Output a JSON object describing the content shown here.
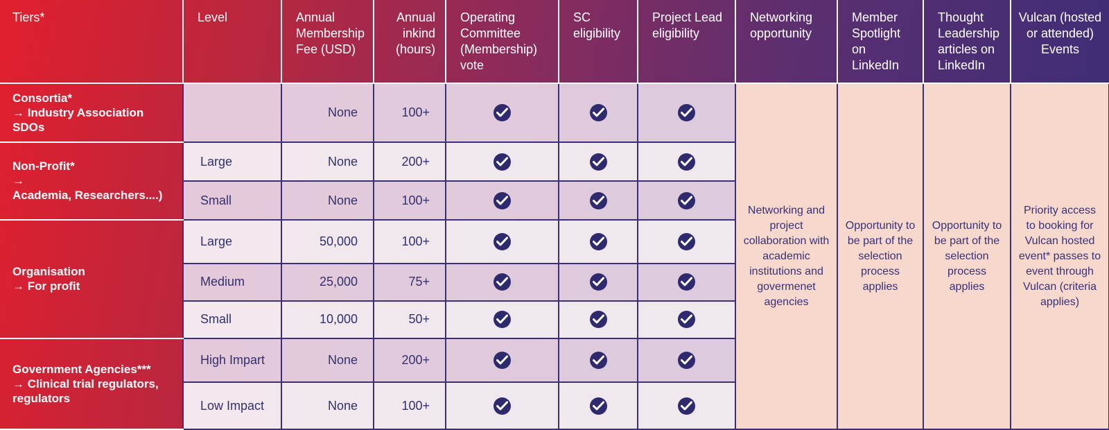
{
  "headers": {
    "tiers": "Tiers*",
    "level": "Level",
    "fee": "Annual Membership Fee (USD)",
    "inkind": "Annual inkind (hours)",
    "oc_vote": "Operating Committee (Membership) vote",
    "sc": "SC eligibility",
    "project_lead": "Project Lead eligibility",
    "networking": "Networking opportunity",
    "spotlight": "Member Spotlight on LinkedIn",
    "thought": "Thought Leadership articles on LinkedIn",
    "events": "Vulcan (hosted or attended) Events"
  },
  "tiers": {
    "consortia": {
      "title": "Consortia*",
      "arrow": "→",
      "sub1": "Industry Association",
      "sub2": "SDOs"
    },
    "nonprofit": {
      "title": "Non-Profit*",
      "arrow": "→",
      "sub1": "Academia, Researchers....)"
    },
    "organisation": {
      "title": "Organisation",
      "arrow": "→",
      "sub1": "For profit"
    },
    "government": {
      "title": "Government Agencies***",
      "arrow": "→",
      "sub1": "Clinical trial regulators,",
      "sub2": "regulators"
    }
  },
  "rows": [
    {
      "level": "",
      "fee": "None",
      "inkind": "100+"
    },
    {
      "level": "Large",
      "fee": "None",
      "inkind": "200+"
    },
    {
      "level": "Small",
      "fee": "None",
      "inkind": "100+"
    },
    {
      "level": "Large",
      "fee": "50,000",
      "inkind": "100+"
    },
    {
      "level": "Medium",
      "fee": "25,000",
      "inkind": "75+"
    },
    {
      "level": "Small",
      "fee": "10,000",
      "inkind": "50+"
    },
    {
      "level": "High Impart",
      "fee": "None",
      "inkind": "200+"
    },
    {
      "level": "Low Impact",
      "fee": "None",
      "inkind": "100+"
    }
  ],
  "benefits": {
    "networking": "Networking and project collaboration with academic institutions and govermenet agencies",
    "spotlight": "Opportunity to be part of the selection process applies",
    "thought": "Opportunity to be part of the selection process applies",
    "events": "Priority access to booking for Vulcan hosted event* passes to event through Vulcan (criteria applies)"
  },
  "colors": {
    "check": "#2f2a6d",
    "peach": "#f7d8cc",
    "header_start": "#e11f2e",
    "header_end": "#3a2d78"
  },
  "icons": {
    "check": "check-circle-icon"
  }
}
